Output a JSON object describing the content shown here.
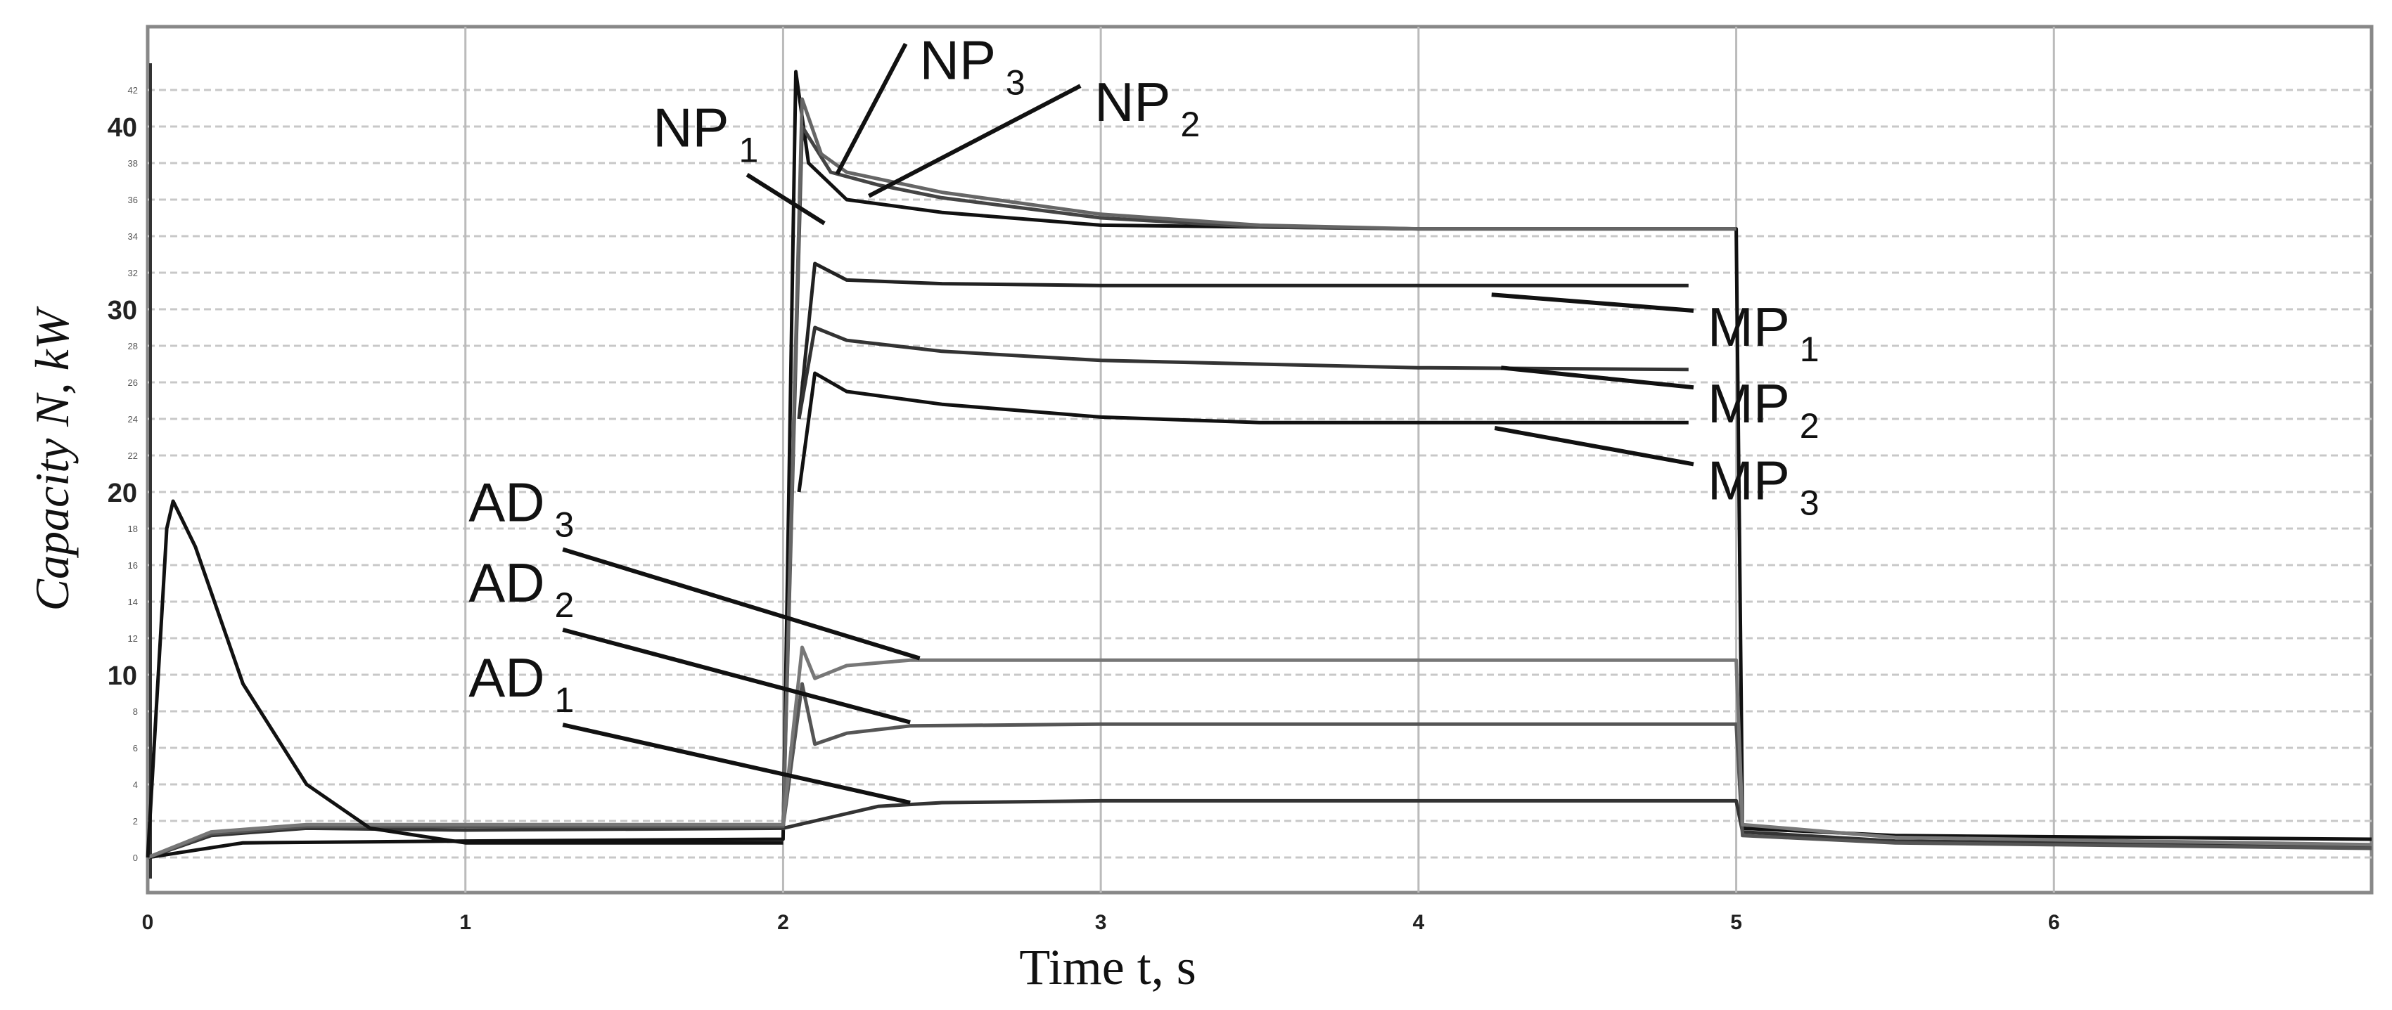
{
  "chart_data": {
    "type": "line",
    "title": "",
    "xlabel": "Time t, s",
    "ylabel": "Capacity N, kW",
    "xlim": [
      0,
      7
    ],
    "ylim": [
      -1,
      44
    ],
    "grid": true,
    "x_ticks": [
      "0",
      "1",
      "2",
      "3",
      "4",
      "5",
      "6"
    ],
    "y_major_ticks": [
      "10",
      "20",
      "30",
      "40"
    ],
    "y_minor_ticks": [
      "0",
      "2",
      "4",
      "6",
      "8",
      "12",
      "14",
      "16",
      "18",
      "22",
      "24",
      "26",
      "28",
      "32",
      "34",
      "36",
      "38",
      "42"
    ],
    "series": [
      {
        "name": "NP1",
        "color": "#111111",
        "x": [
          0,
          0.3,
          1,
          2.0,
          2.04,
          2.08,
          2.2,
          2.5,
          3,
          4,
          5.0,
          5.02,
          5.5,
          7
        ],
        "y": [
          0,
          0.8,
          0.9,
          1.0,
          43,
          38,
          36,
          35.3,
          34.6,
          34.4,
          34.4,
          1.6,
          1.2,
          1.0
        ]
      },
      {
        "name": "NP2",
        "color": "#444444",
        "x": [
          2.0,
          2.06,
          2.15,
          2.3,
          2.5,
          3,
          3.5,
          4,
          5.0
        ],
        "y": [
          1.5,
          40,
          37.5,
          36.8,
          36.1,
          35.0,
          34.5,
          34.4,
          34.4
        ]
      },
      {
        "name": "NP3",
        "color": "#666666",
        "x": [
          2.0,
          2.06,
          2.12,
          2.2,
          2.5,
          3,
          3.5,
          4,
          5.0
        ],
        "y": [
          1.5,
          41.5,
          38.5,
          37.5,
          36.4,
          35.2,
          34.6,
          34.4,
          34.4
        ]
      },
      {
        "name": "MP1",
        "color": "#222222",
        "x": [
          2.05,
          2.1,
          2.2,
          2.5,
          3,
          4,
          4.85
        ],
        "y": [
          24,
          32.5,
          31.6,
          31.4,
          31.3,
          31.3,
          31.3
        ]
      },
      {
        "name": "MP2",
        "color": "#333333",
        "x": [
          2.05,
          2.1,
          2.2,
          2.5,
          3,
          4,
          4.85
        ],
        "y": [
          24,
          29,
          28.3,
          27.7,
          27.2,
          26.8,
          26.7
        ]
      },
      {
        "name": "MP3",
        "color": "#111111",
        "x": [
          2.05,
          2.1,
          2.2,
          2.5,
          3,
          3.5,
          4,
          4.85
        ],
        "y": [
          20,
          26.5,
          25.5,
          24.8,
          24.1,
          23.8,
          23.8,
          23.8
        ]
      },
      {
        "name": "AD1",
        "color": "#333333",
        "x": [
          0,
          0.2,
          0.5,
          1,
          2.0,
          2.1,
          2.3,
          2.5,
          3,
          4,
          5.0,
          5.02,
          5.5,
          7
        ],
        "y": [
          0,
          1.2,
          1.6,
          1.5,
          1.6,
          2.0,
          2.8,
          3.0,
          3.1,
          3.1,
          3.1,
          1.4,
          0.9,
          0.6
        ]
      },
      {
        "name": "AD2",
        "color": "#555555",
        "x": [
          0,
          0.2,
          0.5,
          1,
          2.0,
          2.06,
          2.1,
          2.2,
          2.4,
          3,
          4,
          5.0,
          5.02,
          5.5,
          7
        ],
        "y": [
          0,
          1.3,
          1.7,
          1.7,
          1.7,
          9.5,
          6.2,
          6.8,
          7.2,
          7.3,
          7.3,
          7.3,
          1.2,
          0.8,
          0.5
        ]
      },
      {
        "name": "AD3",
        "color": "#777777",
        "x": [
          0,
          0.2,
          0.5,
          1,
          2.0,
          2.06,
          2.1,
          2.2,
          2.4,
          3,
          4,
          5.0,
          5.02,
          5.5,
          7
        ],
        "y": [
          0,
          1.4,
          1.8,
          1.8,
          1.8,
          11.5,
          9.8,
          10.5,
          10.8,
          10.8,
          10.8,
          10.8,
          1.8,
          1.1,
          0.7
        ]
      },
      {
        "name": "",
        "color": "#111111",
        "x": [
          0,
          0.06,
          0.08,
          0.15,
          0.3,
          0.5,
          0.7,
          1,
          2.0
        ],
        "y": [
          0,
          18,
          19.5,
          17,
          9.5,
          4,
          1.6,
          0.8,
          0.8
        ]
      }
    ],
    "annotations": [
      {
        "main": "NP",
        "sub": "3",
        "x": 2.43,
        "y": 42.6,
        "tip_x": 2.17,
        "tip_y": 37.4
      },
      {
        "main": "NP",
        "sub": "2",
        "x": 2.98,
        "y": 40.3,
        "tip_x": 2.27,
        "tip_y": 36.2
      },
      {
        "main": "NP",
        "sub": "1",
        "x": 1.59,
        "y": 38.9,
        "tip_x": 2.13,
        "tip_y": 34.7
      },
      {
        "main": "MP",
        "sub": "1",
        "x": 4.91,
        "y": 28.0,
        "tip_x": 4.23,
        "tip_y": 30.8
      },
      {
        "main": "MP",
        "sub": "2",
        "x": 4.91,
        "y": 23.8,
        "tip_x": 4.26,
        "tip_y": 26.8
      },
      {
        "main": "MP",
        "sub": "3",
        "x": 4.91,
        "y": 19.6,
        "tip_x": 4.24,
        "tip_y": 23.5
      },
      {
        "main": "AD",
        "sub": "3",
        "x": 1.01,
        "y": 18.4,
        "tip_x": 2.43,
        "tip_y": 10.9
      },
      {
        "main": "AD",
        "sub": "2",
        "x": 1.01,
        "y": 14.0,
        "tip_x": 2.4,
        "tip_y": 7.4
      },
      {
        "main": "AD",
        "sub": "1",
        "x": 1.01,
        "y": 8.8,
        "tip_x": 2.4,
        "tip_y": 3.0
      }
    ]
  }
}
